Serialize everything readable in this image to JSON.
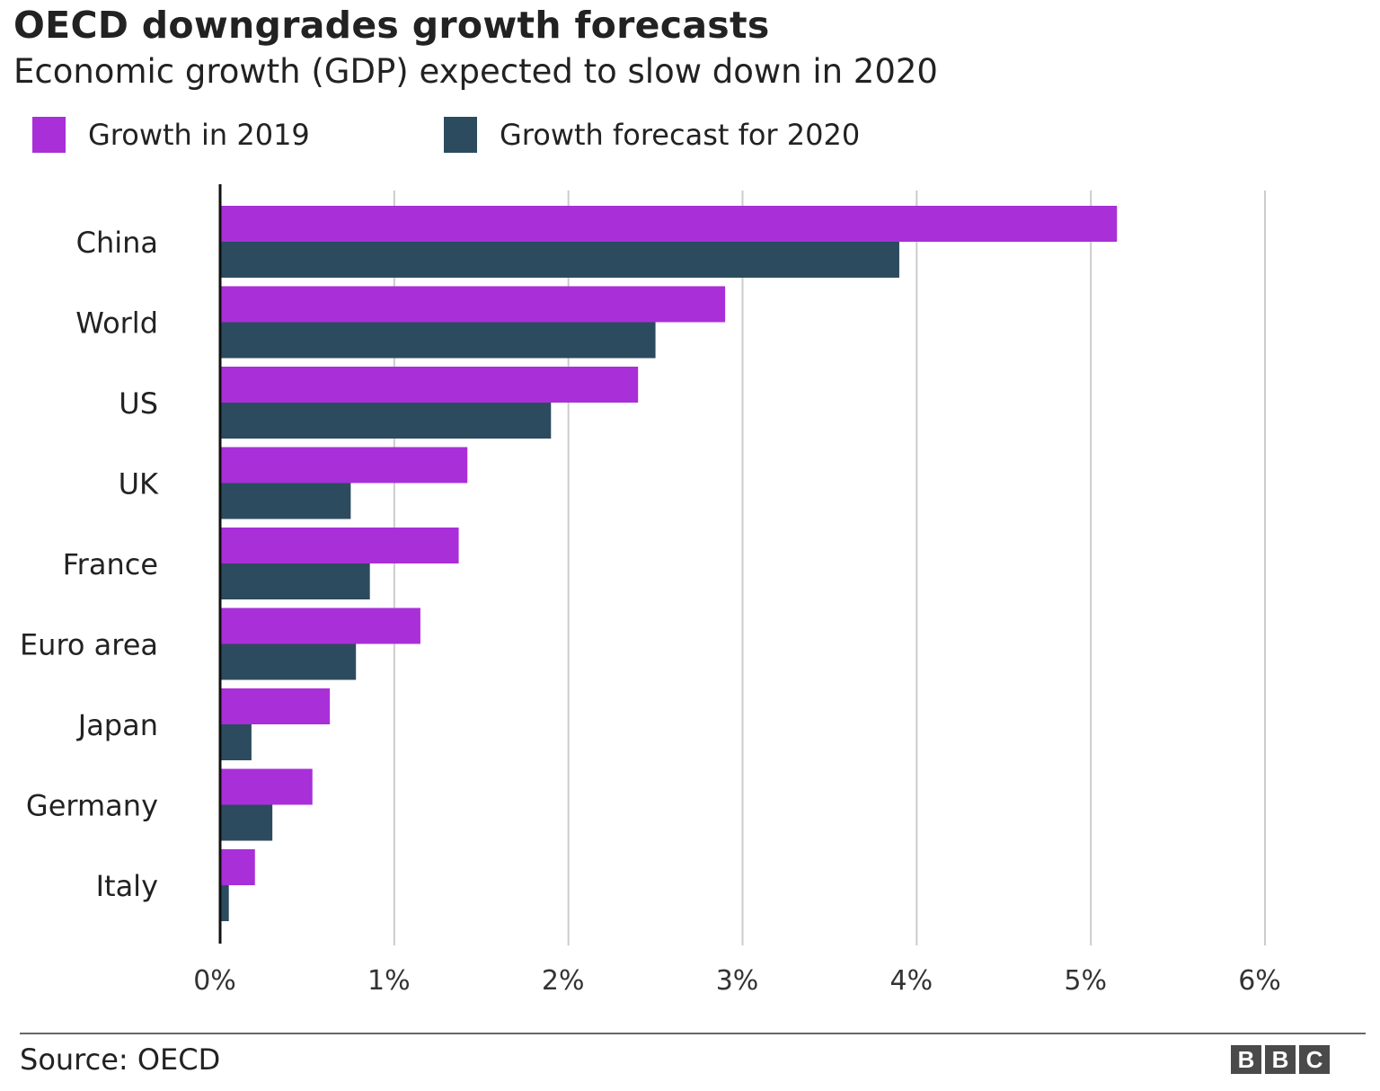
{
  "chart_data": {
    "type": "bar",
    "orientation": "horizontal",
    "title": "OECD downgrades growth forecasts",
    "subtitle": "Economic growth (GDP) expected to slow down in 2020",
    "categories": [
      "China",
      "World",
      "US",
      "UK",
      "France",
      "Euro area",
      "Japan",
      "Germany",
      "Italy"
    ],
    "series": [
      {
        "name": "Growth in 2019",
        "color": "#a92fd8",
        "values": [
          5.15,
          2.9,
          2.4,
          1.42,
          1.37,
          1.15,
          0.63,
          0.53,
          0.2
        ]
      },
      {
        "name": "Growth forecast for 2020",
        "color": "#2c4b5e",
        "values": [
          3.9,
          2.5,
          1.9,
          0.75,
          0.86,
          0.78,
          0.18,
          0.3,
          0.05
        ]
      }
    ],
    "xlim": [
      0,
      6
    ],
    "xticks": [
      "0%",
      "1%",
      "2%",
      "3%",
      "4%",
      "5%",
      "6%"
    ],
    "grid": "vertical",
    "legend": "top-left",
    "source": "Source: OECD"
  },
  "logo": "BBC"
}
